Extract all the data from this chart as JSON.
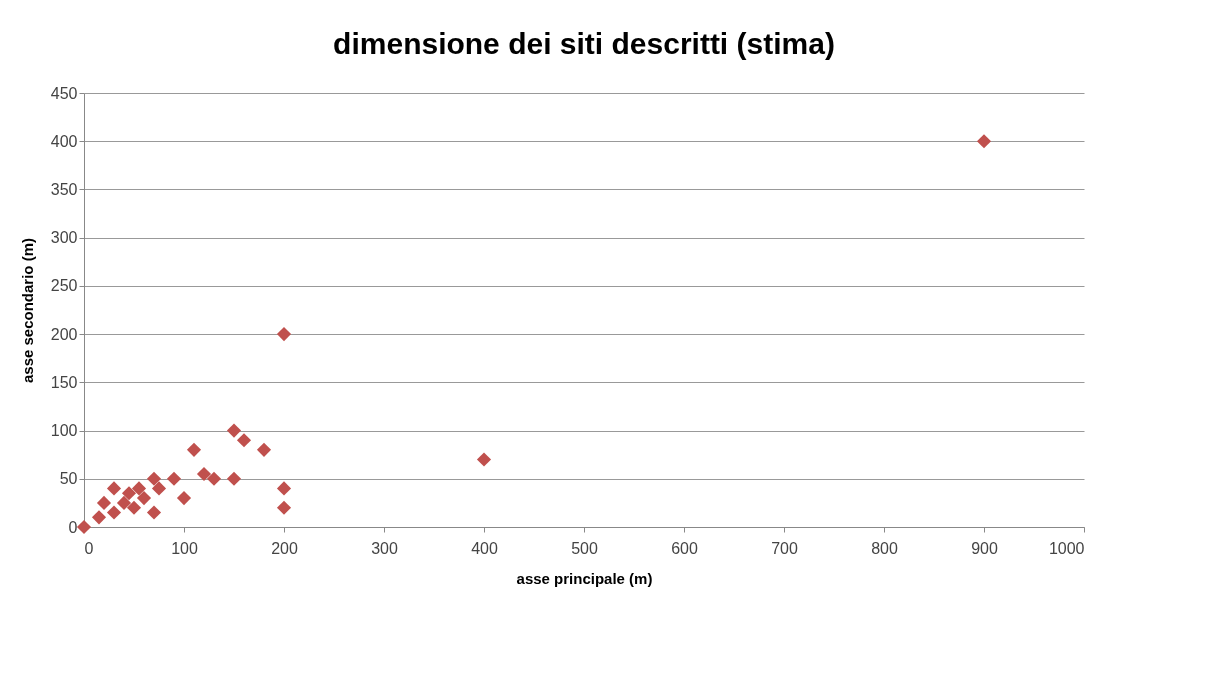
{
  "chart_data": {
    "type": "scatter",
    "title": "dimensione dei siti descritti (stima)",
    "xlabel": "asse principale (m)",
    "ylabel": "asse secondario (m)",
    "xlim": [
      0,
      1000
    ],
    "xticks": [
      0,
      100,
      200,
      300,
      400,
      500,
      600,
      700,
      800,
      900,
      1000
    ],
    "ylim": [
      0,
      450
    ],
    "yticks": [
      0,
      50,
      100,
      150,
      200,
      250,
      300,
      350,
      400,
      450
    ],
    "grid": "y",
    "marker": "diamond",
    "legend": false,
    "series": [
      {
        "color": "#c0504d",
        "x": [
          0,
          15,
          20,
          30,
          30,
          40,
          45,
          50,
          55,
          60,
          70,
          70,
          75,
          90,
          100,
          110,
          120,
          130,
          150,
          150,
          160,
          180,
          200,
          200,
          200,
          400,
          900
        ],
        "values": [
          0,
          10,
          25,
          40,
          15,
          25,
          35,
          20,
          40,
          30,
          50,
          15,
          40,
          50,
          30,
          80,
          55,
          50,
          50,
          100,
          90,
          80,
          200,
          40,
          20,
          70,
          400
        ]
      }
    ]
  }
}
